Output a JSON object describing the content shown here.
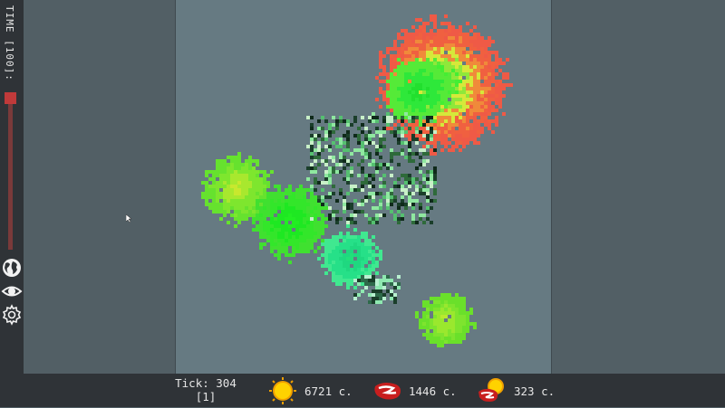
{
  "sidebar": {
    "time_label": "TIME [100]:",
    "icons": [
      "globe-icon",
      "eye-icon",
      "gear-icon"
    ]
  },
  "status": {
    "tick_line1": "Tick: 304",
    "tick_line2": "[1]",
    "sun_count": "6721 c.",
    "meat_count": "1446 c.",
    "mixed_count": "323 c."
  },
  "colors": {
    "background": "#525f65",
    "world": "#667a82",
    "bar": "#2f3337",
    "slider": "#c03a3a"
  }
}
